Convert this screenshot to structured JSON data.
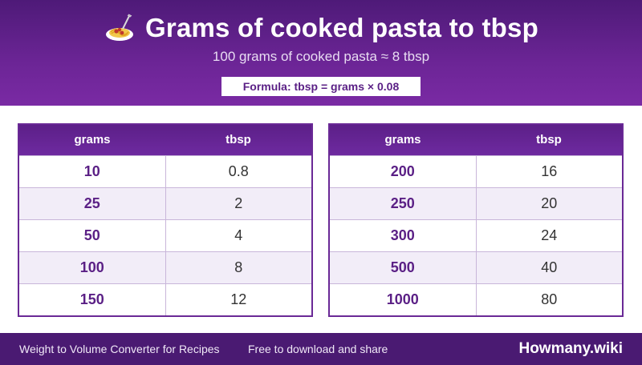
{
  "header": {
    "icon": "spaghetti-icon",
    "title": "Grams of cooked pasta to tbsp",
    "subtitle": "100 grams of cooked pasta ≈ 8 tbsp",
    "formula": "Formula: tbsp = grams × 0.08"
  },
  "tables": [
    {
      "headers": [
        "grams",
        "tbsp"
      ],
      "rows": [
        [
          "10",
          "0.8"
        ],
        [
          "25",
          "2"
        ],
        [
          "50",
          "4"
        ],
        [
          "100",
          "8"
        ],
        [
          "150",
          "12"
        ]
      ]
    },
    {
      "headers": [
        "grams",
        "tbsp"
      ],
      "rows": [
        [
          "200",
          "16"
        ],
        [
          "250",
          "20"
        ],
        [
          "300",
          "24"
        ],
        [
          "500",
          "40"
        ],
        [
          "1000",
          "80"
        ]
      ]
    }
  ],
  "footer": {
    "left": "Weight to Volume Converter for Recipes",
    "middle": "Free to download and share",
    "brand": "Howmany.wiki"
  },
  "colors": {
    "header_purple": "#6c2596",
    "footer_purple": "#4a1a72",
    "grams_text": "#5a1f85",
    "alt_row": "#f2edf8"
  }
}
